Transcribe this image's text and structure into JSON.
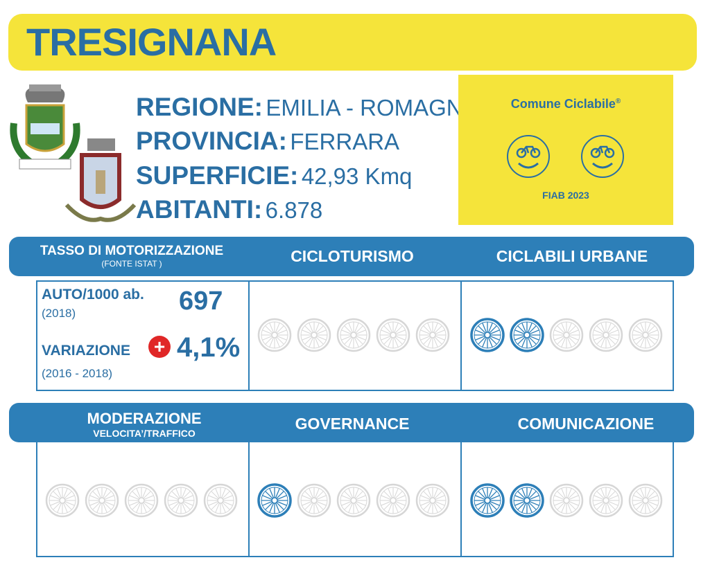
{
  "title": "TRESIGNANA",
  "info": {
    "regione_label": "REGIONE:",
    "regione": "EMILIA - ROMAGNA",
    "provincia_label": "PROVINCIA:",
    "provincia": "FERRARA",
    "superficie_label": "SUPERFICIE:",
    "superficie": "42,93 Kmq",
    "abitanti_label": "ABITANTI:",
    "abitanti": "6.878"
  },
  "fiab": {
    "label": "Comune Ciclabile",
    "reg": "®",
    "year": "FIAB 2023",
    "smileys": 2
  },
  "row1": {
    "h1": "TASSO DI MOTORIZZAZIONE",
    "h1_sub": "(FONTE ISTAT )",
    "h2": "CICLOTURISMO",
    "h3": "CICLABILI URBANE"
  },
  "motorizzazione": {
    "auto_label": "AUTO/1000 ab.",
    "auto_year": "(2018)",
    "auto_value": "697",
    "var_label": "VARIAZIONE",
    "var_sign": "+",
    "var_value": "4,1%",
    "var_years": "(2016 - 2018)"
  },
  "row2": {
    "h1": "MODERAZIONE",
    "h1_sub": "VELOCITA’/TRAFFICO",
    "h2": "GOVERNANCE",
    "h3": "COMUNICAZIONE"
  },
  "ratings": {
    "cicloturismo": 0,
    "ciclabili_urbane": 2,
    "moderazione": 0,
    "governance": 1,
    "comunicazione": 2,
    "max": 5
  },
  "colors": {
    "active": "#2d7fb8",
    "inactive": "#d6d6d6",
    "yellow": "#f5e43a",
    "red": "#e02727"
  }
}
